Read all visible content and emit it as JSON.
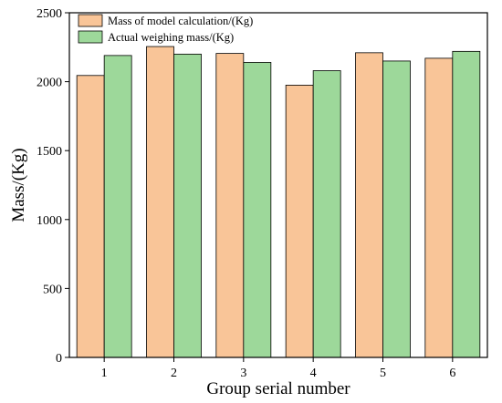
{
  "chart_data": {
    "type": "bar",
    "categories": [
      "1",
      "2",
      "3",
      "4",
      "5",
      "6"
    ],
    "series": [
      {
        "name": "Mass of model calculation/(Kg)",
        "color": "#f9c598",
        "values": [
          2045,
          2255,
          2205,
          1975,
          2210,
          2170
        ]
      },
      {
        "name": "Actual weighing mass/(Kg)",
        "color": "#9dd89a",
        "values": [
          2190,
          2200,
          2140,
          2080,
          2150,
          2220
        ]
      }
    ],
    "title": "",
    "xlabel": "Group serial number",
    "ylabel": "Mass/(Kg)",
    "ylim": [
      0,
      2500
    ],
    "yticks": [
      0,
      500,
      1000,
      1500,
      2000,
      2500
    ],
    "grid": false,
    "legend_position": "top-left"
  }
}
